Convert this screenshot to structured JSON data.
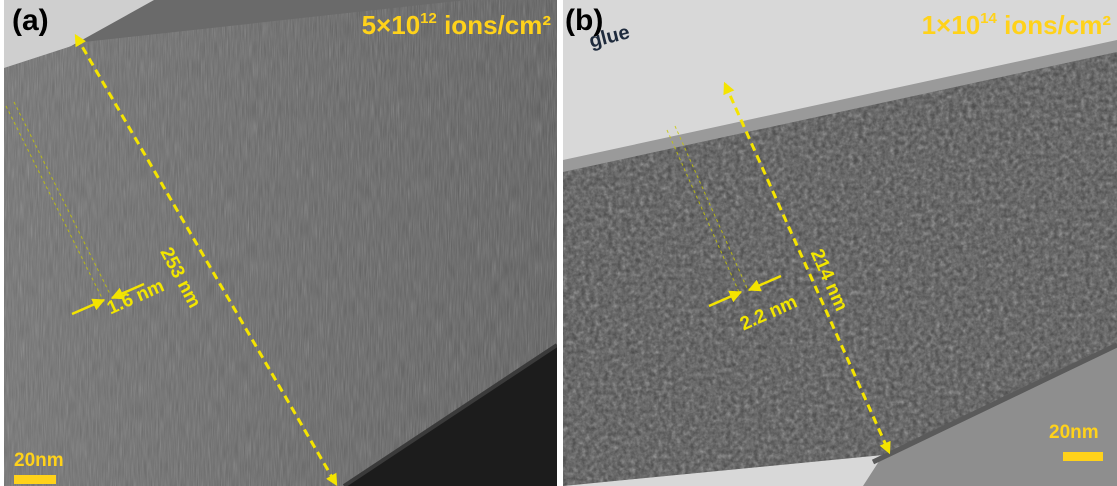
{
  "panel_a": {
    "label": "(a)",
    "dose": {
      "base": "5×10",
      "exponent": "12",
      "unit": " ions/cm²"
    },
    "thickness_label": "253 nm",
    "spacing_label": "1.6 nm",
    "scale_label": "20nm"
  },
  "panel_b": {
    "label": "(b)",
    "glue_label": "glue",
    "dose": {
      "base": "1×10",
      "exponent": "14",
      "unit": " ions/cm²"
    },
    "thickness_label": "214 nm",
    "spacing_label": "2.2 nm",
    "scale_label": "20nm"
  },
  "colors": {
    "annotation": "#ffd21a",
    "arrow": "#f4e400",
    "letter": "#000000",
    "glue": "#1e2a3c"
  }
}
